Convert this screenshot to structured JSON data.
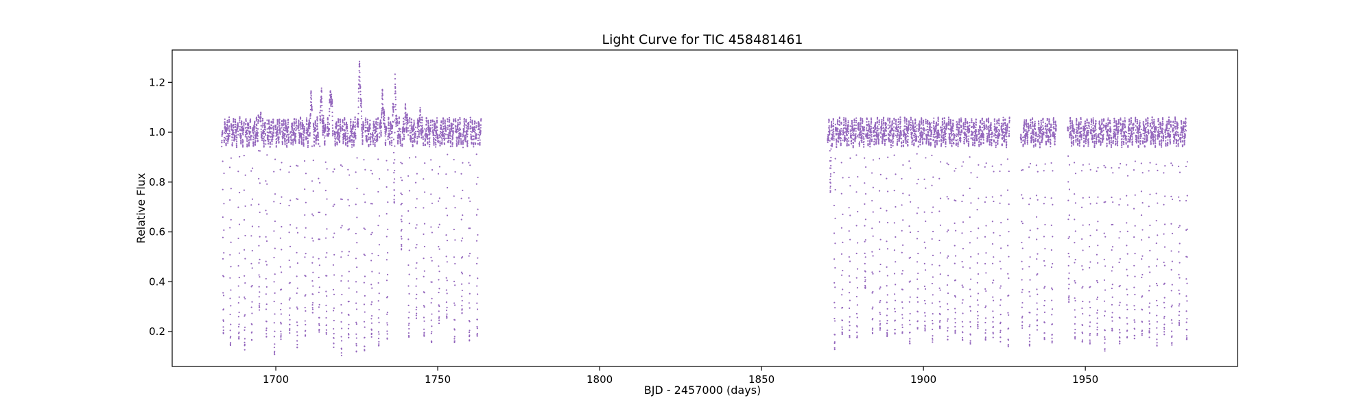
{
  "chart_data": {
    "type": "scatter",
    "title": "Light Curve for TIC 458481461",
    "xlabel": "BJD - 2457000 (days)",
    "ylabel": "Relative Flux",
    "xlim": [
      1668,
      1997
    ],
    "ylim": [
      0.06,
      1.33
    ],
    "xticks": [
      1700,
      1750,
      1800,
      1850,
      1900,
      1950
    ],
    "yticks": [
      0.2,
      0.4,
      0.6,
      0.8,
      1.0,
      1.2
    ],
    "ytick_labels": [
      "0.2",
      "0.4",
      "0.6",
      "0.8",
      "1.0",
      "1.2"
    ],
    "grid": false,
    "series_color": "#9467bd",
    "segments": [
      {
        "x_range": [
          1683.3,
          1763.4
        ],
        "baseline": 1.0,
        "eclipses": [
          {
            "x": 1683.8,
            "min": 0.2
          },
          {
            "x": 1686.0,
            "min": 0.19
          },
          {
            "x": 1688.6,
            "min": 0.18
          },
          {
            "x": 1690.4,
            "min": 0.17
          },
          {
            "x": 1692.6,
            "min": 0.16
          },
          {
            "x": 1694.9,
            "min": 0.25
          },
          {
            "x": 1697.1,
            "min": 0.19
          },
          {
            "x": 1699.6,
            "min": 0.16
          },
          {
            "x": 1701.6,
            "min": 0.18
          },
          {
            "x": 1704.3,
            "min": 0.18
          },
          {
            "x": 1706.6,
            "min": 0.17
          },
          {
            "x": 1709.1,
            "min": 0.21
          },
          {
            "x": 1711.4,
            "min": 0.2
          },
          {
            "x": 1713.4,
            "min": 0.15
          },
          {
            "x": 1715.6,
            "min": 0.22
          },
          {
            "x": 1717.9,
            "min": 0.12
          },
          {
            "x": 1720.3,
            "min": 0.16
          },
          {
            "x": 1722.5,
            "min": 0.15
          },
          {
            "x": 1724.9,
            "min": 0.16
          },
          {
            "x": 1727.4,
            "min": 0.17
          },
          {
            "x": 1729.6,
            "min": 0.15
          },
          {
            "x": 1731.8,
            "min": 0.14
          },
          {
            "x": 1734.4,
            "min": 0.21
          },
          {
            "x": 1736.6,
            "min": 0.54
          },
          {
            "x": 1738.8,
            "min": 0.52
          },
          {
            "x": 1741.1,
            "min": 0.18
          },
          {
            "x": 1743.4,
            "min": 0.26
          },
          {
            "x": 1745.8,
            "min": 0.16
          },
          {
            "x": 1748.1,
            "min": 0.18
          },
          {
            "x": 1750.4,
            "min": 0.2
          },
          {
            "x": 1752.8,
            "min": 0.24
          },
          {
            "x": 1755.2,
            "min": 0.17
          },
          {
            "x": 1757.5,
            "min": 0.25
          },
          {
            "x": 1759.8,
            "min": 0.19
          },
          {
            "x": 1762.2,
            "min": 0.19
          }
        ],
        "peaks": [
          {
            "x": 1695.0,
            "max": 1.09
          },
          {
            "x": 1711.0,
            "max": 1.15
          },
          {
            "x": 1714.0,
            "max": 1.16
          },
          {
            "x": 1717.0,
            "max": 1.19
          },
          {
            "x": 1725.9,
            "max": 1.27
          },
          {
            "x": 1733.0,
            "max": 1.15
          },
          {
            "x": 1736.7,
            "max": 1.25
          },
          {
            "x": 1740.2,
            "max": 1.1
          },
          {
            "x": 1744.5,
            "max": 1.08
          }
        ]
      },
      {
        "x_range": [
          1870.4,
          1981.5
        ],
        "baseline": 1.0,
        "eclipses": [
          {
            "x": 1871.3,
            "min": 0.8
          },
          {
            "x": 1872.6,
            "min": 0.17
          },
          {
            "x": 1874.9,
            "min": 0.16
          },
          {
            "x": 1877.2,
            "min": 0.19
          },
          {
            "x": 1879.5,
            "min": 0.17
          },
          {
            "x": 1882.0,
            "min": 0.35
          },
          {
            "x": 1884.3,
            "min": 0.22
          },
          {
            "x": 1886.6,
            "min": 0.2
          },
          {
            "x": 1888.8,
            "min": 0.18
          },
          {
            "x": 1891.2,
            "min": 0.2
          },
          {
            "x": 1893.5,
            "min": 0.17
          },
          {
            "x": 1895.8,
            "min": 0.18
          },
          {
            "x": 1898.2,
            "min": 0.21
          },
          {
            "x": 1900.5,
            "min": 0.19
          },
          {
            "x": 1902.8,
            "min": 0.19
          },
          {
            "x": 1905.1,
            "min": 0.17
          },
          {
            "x": 1907.5,
            "min": 0.19
          },
          {
            "x": 1909.8,
            "min": 0.18
          },
          {
            "x": 1912.1,
            "min": 0.19
          },
          {
            "x": 1914.5,
            "min": 0.19
          },
          {
            "x": 1916.8,
            "min": 0.17
          },
          {
            "x": 1919.2,
            "min": 0.18
          },
          {
            "x": 1921.5,
            "min": 0.18
          },
          {
            "x": 1923.8,
            "min": 0.18
          },
          {
            "x": 1926.2,
            "min": 0.18
          },
          {
            "x": 1930.5,
            "min": 0.2
          },
          {
            "x": 1932.8,
            "min": 0.16
          },
          {
            "x": 1935.1,
            "min": 0.21
          },
          {
            "x": 1937.4,
            "min": 0.18
          },
          {
            "x": 1939.7,
            "min": 0.17
          },
          {
            "x": 1944.9,
            "min": 0.34
          },
          {
            "x": 1946.8,
            "min": 0.18
          },
          {
            "x": 1949.1,
            "min": 0.16
          },
          {
            "x": 1951.4,
            "min": 0.18
          },
          {
            "x": 1953.7,
            "min": 0.18
          },
          {
            "x": 1956.0,
            "min": 0.15
          },
          {
            "x": 1958.3,
            "min": 0.18
          },
          {
            "x": 1960.6,
            "min": 0.17
          },
          {
            "x": 1962.9,
            "min": 0.16
          },
          {
            "x": 1965.2,
            "min": 0.18
          },
          {
            "x": 1967.5,
            "min": 0.19
          },
          {
            "x": 1969.8,
            "min": 0.18
          },
          {
            "x": 1972.1,
            "min": 0.17
          },
          {
            "x": 1974.4,
            "min": 0.18
          },
          {
            "x": 1976.7,
            "min": 0.18
          },
          {
            "x": 1979.0,
            "min": 0.2
          },
          {
            "x": 1981.3,
            "min": 0.19
          }
        ],
        "gaps": [
          [
            1926.6,
            1930.0
          ],
          [
            1941.0,
            1944.5
          ]
        ]
      }
    ]
  }
}
